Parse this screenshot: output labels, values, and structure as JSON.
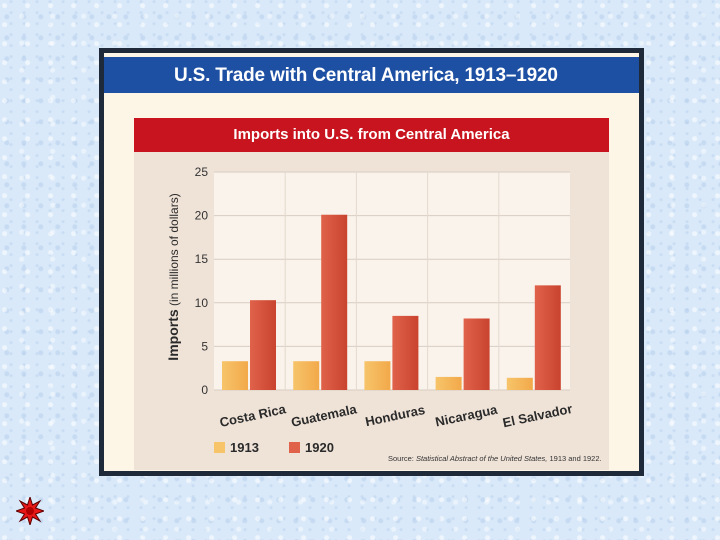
{
  "slide": {
    "title": "U.S. Trade with Central America, 1913–1920",
    "nav_icon": "star-burst-icon",
    "colors": {
      "title_bar": "#1d4fa3",
      "subtitle_bar": "#c8141e",
      "panel": "#efe3d8",
      "background": "#d9e9f9"
    }
  },
  "chart_data": {
    "type": "bar",
    "title": "Imports into U.S. from Central America",
    "ylabel_bold": "Imports",
    "ylabel_rest": " (in millions of dollars)",
    "xlabel": "",
    "ylim": [
      0,
      25
    ],
    "yticks": [
      0,
      5,
      10,
      15,
      20,
      25
    ],
    "grid": true,
    "categories": [
      "Costa Rica",
      "Guatemala",
      "Honduras",
      "Nicaragua",
      "El Salvador"
    ],
    "series": [
      {
        "name": "1913",
        "color": "#f7c46a",
        "values": [
          3.3,
          3.3,
          3.3,
          1.5,
          1.4
        ]
      },
      {
        "name": "1920",
        "color": "#e0624a",
        "values": [
          10.3,
          20.1,
          8.5,
          8.2,
          12.0
        ]
      }
    ],
    "legend_position": "bottom-left",
    "source_label": "Source: ",
    "source_italic": "Statistical Abstract of the United States,",
    "source_years": " 1913 and 1922."
  }
}
